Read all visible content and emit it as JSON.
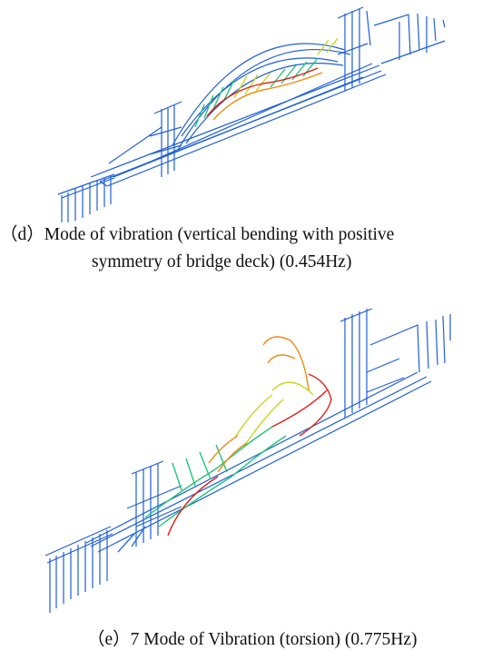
{
  "palette": {
    "structure": "#1f5fd6",
    "mode_low": "#2b6fe0",
    "mode_mid": "#22c47a",
    "mode_high1": "#c8d61a",
    "mode_high2": "#f08a12",
    "mode_peak": "#e21b1b"
  },
  "panel_d": {
    "caption_line1": "（d）Mode of vibration (vertical bending with positive",
    "caption_line2": "symmetry of bridge deck) (0.454Hz)"
  },
  "panel_e": {
    "caption": "（e）7 Mode of Vibration (torsion) (0.775Hz)"
  }
}
